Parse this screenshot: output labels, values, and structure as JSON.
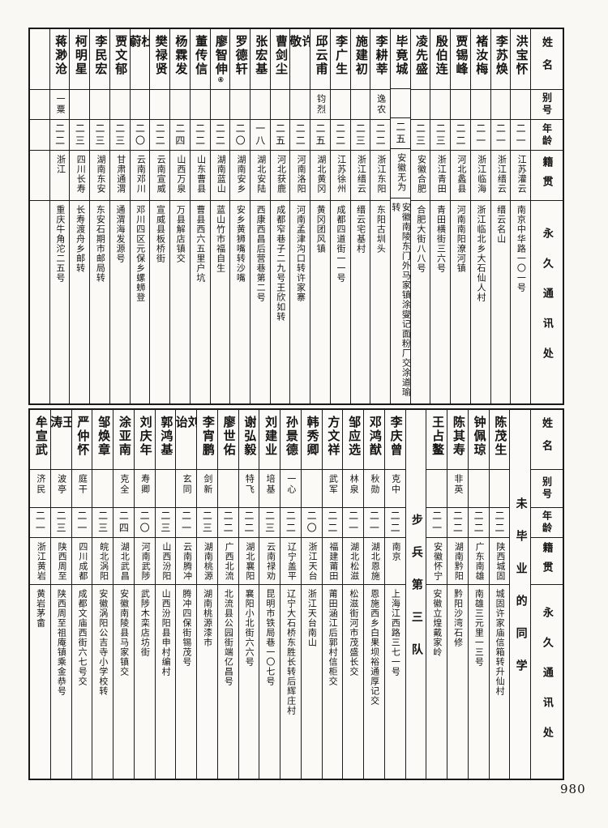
{
  "page": {
    "number": "980"
  },
  "headers": {
    "name": "姓名",
    "alias": "别号",
    "age": "年龄",
    "native": "籍贯",
    "address": "永久通讯处"
  },
  "top_table": {
    "columns": [
      {
        "type": "student",
        "name": "洪宝怀",
        "alias": "",
        "age": "二一",
        "native": "江苏灌云",
        "address": "南京中华路一〇一号"
      },
      {
        "type": "student",
        "name": "李苏焕",
        "alias": "",
        "age": "二一",
        "native": "浙江缙云",
        "address": "缙云名山"
      },
      {
        "type": "student",
        "name": "褚汝梅",
        "alias": "",
        "age": "二一",
        "native": "浙江临海",
        "address": "浙江临北乡大石仙人村"
      },
      {
        "type": "student",
        "name": "贾锡峰",
        "alias": "",
        "age": "二二",
        "native": "河北蠡县",
        "address": "河南南阳潦河镇"
      },
      {
        "type": "student",
        "name": "殷伯连",
        "alias": "",
        "age": "二三",
        "native": "浙江青田",
        "address": "青田横街三六号"
      },
      {
        "type": "student",
        "name": "凌先盛",
        "alias": "",
        "age": "二三",
        "native": "安徽合肥",
        "address": "合肥大街八八号"
      },
      {
        "type": "student",
        "name": "毕竟城",
        "alias": "",
        "age": "二五",
        "native": "安徽无为",
        "address": "安徽南陵东门外马家镇涂燮记面粉厂交涂道瑜转"
      },
      {
        "type": "student",
        "name": "李耕莘",
        "alias": "逸农",
        "age": "二二",
        "native": "浙江东阳",
        "address": "东阳古圳头"
      },
      {
        "type": "student",
        "name": "施建初",
        "alias": "",
        "age": "二三",
        "native": "浙江缙云",
        "address": "缙云宅基村"
      },
      {
        "type": "student",
        "name": "李广生",
        "alias": "",
        "age": "二二",
        "native": "江苏徐州",
        "address": "成都四道街一一号"
      },
      {
        "type": "student",
        "name": "邱云甫",
        "alias": "钧烈",
        "age": "二五",
        "native": "湖北黄冈",
        "address": "黄冈团风镇"
      },
      {
        "type": "student",
        "name": "许敬",
        "alias": "",
        "age": "二二",
        "native": "河南洛阳",
        "address": "河南孟津沟口转许家寨"
      },
      {
        "type": "student",
        "name": "曹剑尘",
        "alias": "",
        "age": "二五",
        "native": "河北获鹿",
        "address": "成都窄巷子二九号王欣如转"
      },
      {
        "type": "student",
        "name": "张宏基",
        "alias": "",
        "age": "一八",
        "native": "湖北安陆",
        "address": "西康西昌后营巷第二号"
      },
      {
        "type": "student",
        "name": "罗德轩",
        "alias": "",
        "age": "二〇",
        "native": "湖南安乡",
        "address": "安乡黄狮嘴转沙嘴"
      },
      {
        "type": "student",
        "name": "廖智伸",
        "note": "④",
        "alias": "",
        "age": "二二",
        "native": "湖南蓝山",
        "address": "蓝山竹市福自生"
      },
      {
        "type": "student",
        "name": "董传信",
        "alias": "",
        "age": "二二",
        "native": "山东曹县",
        "address": "曹县西六五里户坑"
      },
      {
        "type": "student",
        "name": "杨霖发",
        "alias": "",
        "age": "二四",
        "native": "山西万泉",
        "address": "万县解店镇交"
      },
      {
        "type": "student",
        "name": "樊禄贤",
        "alias": "",
        "age": "二二",
        "native": "云南宣威",
        "address": "宣威县板桥街"
      },
      {
        "type": "student",
        "name": "杜蔚",
        "alias": "",
        "age": "二〇",
        "native": "云南邓川",
        "address": "邓川四区元保乡螺蛳登"
      },
      {
        "type": "student",
        "name": "贾文郁",
        "alias": "",
        "age": "二三",
        "native": "甘肃通渭",
        "address": "通渭海发源号"
      },
      {
        "type": "student",
        "name": "李民宏",
        "alias": "",
        "age": "二三",
        "native": "湖南东安",
        "address": "东安石期市邮局转"
      },
      {
        "type": "student",
        "name": "柯明星",
        "alias": "",
        "age": "二三",
        "native": "四川长寿",
        "address": "长寿渡舟乡邮转"
      },
      {
        "type": "student",
        "name": "蒋渺沧",
        "alias": "一粟",
        "age": "二二",
        "native": "浙江",
        "address": "重庆牛角沱二五号"
      },
      {
        "type": "empty"
      }
    ]
  },
  "bottom_table": {
    "columns": [
      {
        "type": "section",
        "label": "未毕业的同学"
      },
      {
        "type": "student",
        "name": "陈茂生",
        "alias": "",
        "age": "二二",
        "native": "陕西城固",
        "address": "城固许家庙信箱转升仙村"
      },
      {
        "type": "student",
        "name": "钟佩琼",
        "alias": "",
        "age": "二二",
        "native": "广东南雄",
        "address": "南雄三元里一三号"
      },
      {
        "type": "student",
        "name": "陈其寿",
        "alias": "非英",
        "age": "二二",
        "native": "湖南黔阳",
        "address": "黔阳沙湾石修"
      },
      {
        "type": "student",
        "name": "王占鳌",
        "alias": "",
        "age": "二一",
        "native": "安徽怀宁",
        "address": "安徽立煌戴家岭"
      },
      {
        "type": "section",
        "label": "步兵第三队"
      },
      {
        "type": "student",
        "name": "李庆曾",
        "alias": "克中",
        "age": "二二",
        "native": "南京",
        "address": "上海江西路三七一号"
      },
      {
        "type": "student",
        "name": "邓鸿猷",
        "alias": "秋勋",
        "age": "二一",
        "native": "湖北恩施",
        "address": "恩施西乡白果坝裕通厚记交"
      },
      {
        "type": "student",
        "name": "邹应选",
        "alias": "林泉",
        "age": "二一",
        "native": "湖北松滋",
        "address": "松滋街河市茂盛长交"
      },
      {
        "type": "student",
        "name": "方文祥",
        "alias": "武军",
        "age": "二二",
        "native": "福建莆田",
        "address": "莆田涵江后郭村信柜交"
      },
      {
        "type": "student",
        "name": "韩秀卿",
        "alias": "",
        "age": "二〇",
        "native": "浙江天台",
        "address": "浙江天台南山"
      },
      {
        "type": "student",
        "name": "孙景德",
        "alias": "一心",
        "age": "二二",
        "native": "辽宁盖平",
        "address": "辽宁大石桥东胜长转后辉庄村"
      },
      {
        "type": "student",
        "name": "刘建业",
        "alias": "培基",
        "age": "二三",
        "native": "云南禄劝",
        "address": "昆明市铁局巷一〇七号"
      },
      {
        "type": "student",
        "name": "谢弘毅",
        "alias": "特飞",
        "age": "二二",
        "native": "湖北襄阳",
        "address": "襄阳小北街六六号"
      },
      {
        "type": "student",
        "name": "廖世佑",
        "alias": "",
        "age": "二二",
        "native": "广西北流",
        "address": "北流县公园街端亿昌号"
      },
      {
        "type": "student",
        "name": "李宵鹏",
        "alias": "剑新",
        "age": "二三",
        "native": "湖南桃源",
        "address": "湖南桃源漆市"
      },
      {
        "type": "student",
        "name": "刘诒",
        "alias": "玄同",
        "age": "二一",
        "native": "云南腾冲",
        "address": "腾冲四保街锡茂号"
      },
      {
        "type": "student",
        "name": "郭鸿基",
        "alias": "",
        "age": "二三",
        "native": "山西汾阳",
        "address": "山西汾阳县申村编村"
      },
      {
        "type": "student",
        "name": "刘庆年",
        "alias": "寿卿",
        "age": "二〇",
        "native": "河南武陟",
        "address": "武陟木栾店坊街"
      },
      {
        "type": "student",
        "name": "涂亚南",
        "alias": "克全",
        "age": "二四",
        "native": "湖北武昌",
        "address": "安徽南陵县马家镇交"
      },
      {
        "type": "student",
        "name": "邹焕章",
        "alias": "",
        "age": "二三",
        "native": "皖北涡阳",
        "address": "安徽涡阳公吉寺小学校转"
      },
      {
        "type": "student",
        "name": "严仲怀",
        "alias": "庭干",
        "age": "二一",
        "native": "四川成都",
        "address": "成都文庙西街六七号交"
      },
      {
        "type": "student",
        "name": "王涛",
        "alias": "波亭",
        "age": "二三",
        "native": "陕西周至",
        "address": "陕西周至祖庵镇乘金恭号"
      },
      {
        "type": "student",
        "name": "牟宣武",
        "alias": "济民",
        "age": "二一",
        "native": "浙江黄岩",
        "address": "黄岩茅畲"
      }
    ]
  }
}
